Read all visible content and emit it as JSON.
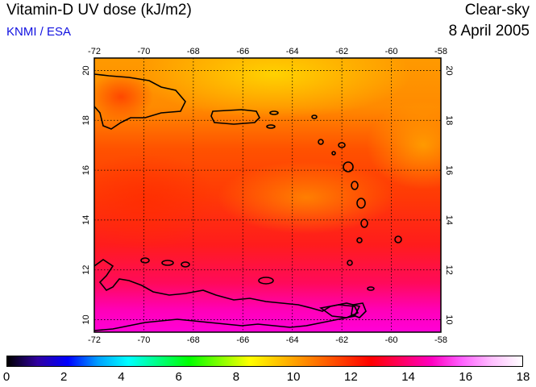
{
  "header": {
    "title": "Vitamin-D UV dose (kJ/m2)",
    "credit": "KNMI / ESA",
    "condition": "Clear-sky",
    "date": "8 April 2005"
  },
  "map": {
    "lon_ticks": [
      "-72",
      "-70",
      "-68",
      "-66",
      "-64",
      "-62",
      "-60",
      "-58"
    ],
    "lat_ticks": [
      "10",
      "12",
      "14",
      "16",
      "18",
      "20"
    ],
    "lon_range": [
      -72,
      -58
    ],
    "lat_range": [
      9.5,
      20.5
    ],
    "grid": true
  },
  "colorbar": {
    "labels": [
      "0",
      "2",
      "4",
      "6",
      "8",
      "10",
      "12",
      "14",
      "16",
      "18"
    ],
    "range": [
      0,
      18
    ],
    "colors": [
      "#000000",
      "#3000a0",
      "#0000ff",
      "#00a0ff",
      "#00ffff",
      "#00ff80",
      "#00ff00",
      "#80ff00",
      "#ffff00",
      "#ffc000",
      "#ff8000",
      "#ff4000",
      "#ff0000",
      "#ff0060",
      "#ff00c0",
      "#ff60ff",
      "#ffc0ff",
      "#ffffff"
    ]
  }
}
